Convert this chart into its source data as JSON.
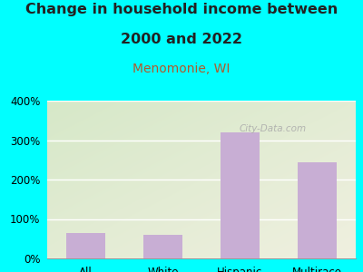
{
  "title_line1": "Change in household income between",
  "title_line2": "2000 and 2022",
  "subtitle": "Menomonie, WI",
  "categories": [
    "All",
    "White",
    "Hispanic",
    "Multirace"
  ],
  "values": [
    65,
    60,
    320,
    243
  ],
  "bar_color": "#c8aed4",
  "background_outer": "#00ffff",
  "background_plot_top_left": "#d6e8c8",
  "background_plot_bottom_right": "#f5f5e8",
  "title_color": "#222222",
  "subtitle_color": "#b05a2a",
  "ylim": [
    0,
    400
  ],
  "yticks": [
    0,
    100,
    200,
    300,
    400
  ],
  "watermark": "City-Data.com",
  "title_fontsize": 11.5,
  "subtitle_fontsize": 10,
  "tick_fontsize": 8.5
}
